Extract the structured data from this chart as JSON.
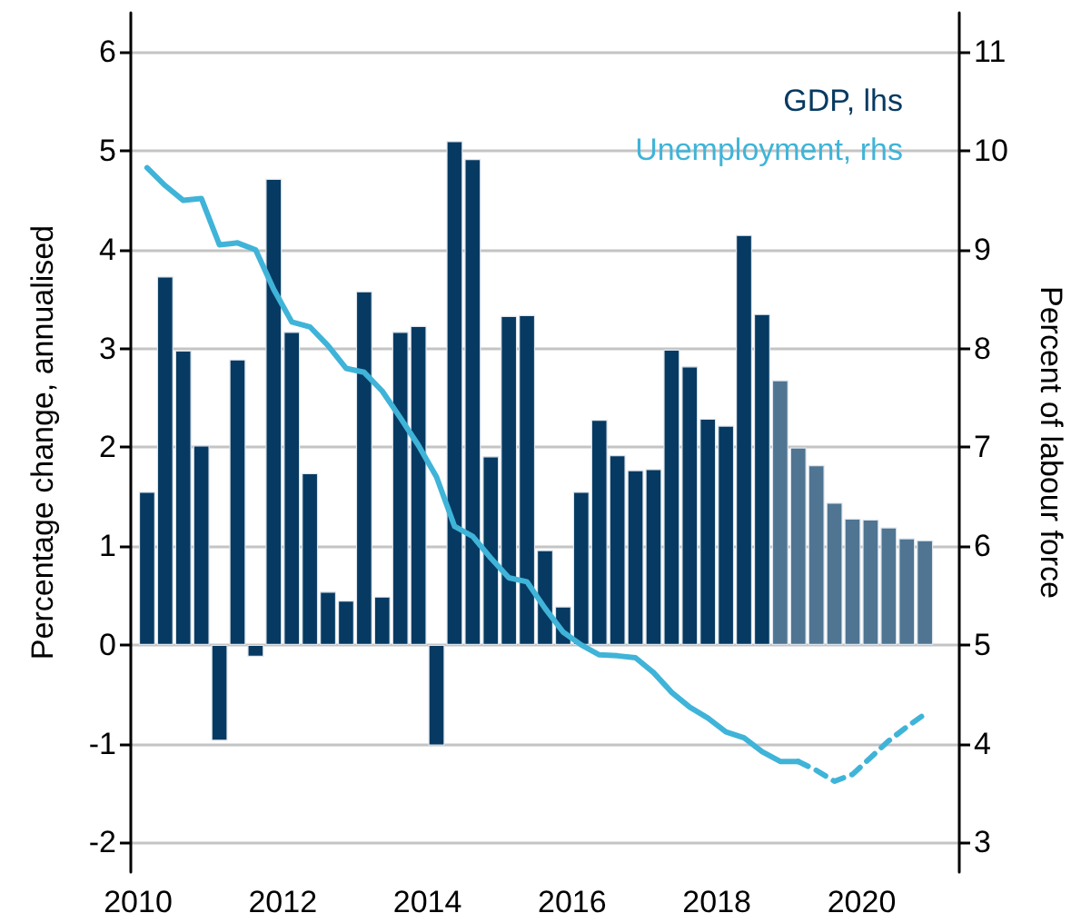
{
  "chart_data": {
    "type": "bar",
    "ylabel": "Percentage change, annualised",
    "y2label": "Percent of labour force",
    "xlim": [
      2009.9,
      2021.35
    ],
    "xticks": [
      2010,
      2012,
      2014,
      2016,
      2018,
      2020
    ],
    "ylim": [
      -2.3,
      6.4
    ],
    "yticks": [
      -2,
      -1,
      0,
      1,
      2,
      3,
      4,
      5,
      6
    ],
    "y2lim": [
      2.7,
      11.4
    ],
    "y2ticks": [
      3,
      4,
      5,
      6,
      7,
      8,
      9,
      10,
      11
    ],
    "grid": "y",
    "legend": "top right",
    "series": [
      {
        "name": "GDP, lhs",
        "color": "#063a62",
        "x": [
          2010.125,
          2010.375,
          2010.625,
          2010.875,
          2011.125,
          2011.375,
          2011.625,
          2011.875,
          2012.125,
          2012.375,
          2012.625,
          2012.875,
          2013.125,
          2013.375,
          2013.625,
          2013.875,
          2014.125,
          2014.375,
          2014.625,
          2014.875,
          2015.125,
          2015.375,
          2015.625,
          2015.875,
          2016.125,
          2016.375,
          2016.625,
          2016.875,
          2017.125,
          2017.375,
          2017.625,
          2017.875,
          2018.125,
          2018.375,
          2018.625
        ],
        "values": [
          1.55,
          3.73,
          2.98,
          2.02,
          -0.97,
          2.89,
          -0.12,
          4.72,
          3.17,
          1.74,
          0.54,
          0.45,
          3.58,
          0.49,
          3.17,
          3.23,
          -1.02,
          5.1,
          4.92,
          1.91,
          3.33,
          3.34,
          0.96,
          0.39,
          1.55,
          2.28,
          1.92,
          1.77,
          1.78,
          2.99,
          2.82,
          2.29,
          2.22,
          4.15,
          3.35
        ]
      },
      {
        "color": "#4f7592",
        "x": [
          2018.875,
          2019.125,
          2019.375,
          2019.625,
          2019.875,
          2020.125,
          2020.375,
          2020.625,
          2020.875
        ],
        "values": [
          2.68,
          2.0,
          1.82,
          1.44,
          1.28,
          1.27,
          1.19,
          1.08,
          1.06
        ]
      },
      {
        "name": "Unemployment, rhs",
        "type": "line",
        "axis": "y2",
        "color": "#3fb4d8",
        "line_style": "solid",
        "x": [
          2010.125,
          2010.375,
          2010.625,
          2010.875,
          2011.125,
          2011.375,
          2011.625,
          2011.875,
          2012.125,
          2012.375,
          2012.625,
          2012.875,
          2013.125,
          2013.375,
          2013.625,
          2013.875,
          2014.125,
          2014.375,
          2014.625,
          2014.875,
          2015.125,
          2015.375,
          2015.625,
          2015.875,
          2016.125,
          2016.375,
          2016.625,
          2016.875,
          2017.125,
          2017.375,
          2017.625,
          2017.875,
          2018.125,
          2018.375,
          2018.625,
          2018.875,
          2019.125
        ],
        "values": [
          9.83,
          9.65,
          9.5,
          9.52,
          9.05,
          9.07,
          9.0,
          8.6,
          8.27,
          8.22,
          8.03,
          7.8,
          7.76,
          7.57,
          7.3,
          7.02,
          6.7,
          6.2,
          6.1,
          5.88,
          5.68,
          5.64,
          5.37,
          5.13,
          5.0,
          4.9,
          4.89,
          4.87,
          4.72,
          4.52,
          4.37,
          4.26,
          4.12,
          4.06,
          3.92,
          3.82,
          3.82
        ]
      },
      {
        "type": "line",
        "axis": "y2",
        "color": "#3fb4d8",
        "line_style": "dashed",
        "x": [
          2019.125,
          2019.375,
          2019.625,
          2019.875,
          2020.125,
          2020.375,
          2020.625,
          2020.875
        ],
        "values": [
          3.82,
          3.73,
          3.62,
          3.69,
          3.86,
          4.03,
          4.17,
          4.3
        ]
      }
    ]
  }
}
